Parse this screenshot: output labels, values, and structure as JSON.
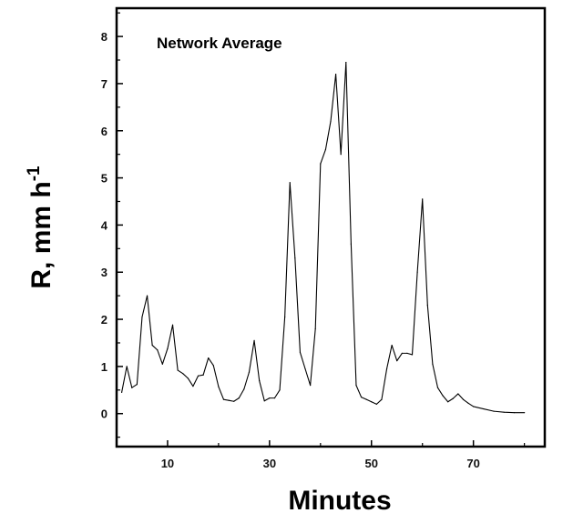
{
  "chart_data": {
    "type": "line",
    "annotation": "Network Average",
    "xlabel": "Minutes",
    "ylabel": "R, mm h",
    "ylabel_superscript": "-1",
    "xlim": [
      0,
      84
    ],
    "ylim": [
      -0.7,
      8.6
    ],
    "x_ticks": [
      10,
      30,
      50,
      70
    ],
    "y_ticks": [
      0,
      1,
      2,
      3,
      4,
      5,
      6,
      7,
      8
    ],
    "grid": false,
    "series": [
      {
        "x": [
          1,
          2,
          3,
          4,
          5,
          6,
          7,
          8,
          9,
          10,
          11,
          12,
          13,
          14,
          15,
          16,
          17,
          18,
          19,
          20,
          21,
          22,
          23,
          24,
          25,
          26,
          27,
          28,
          29,
          30,
          31,
          32,
          33,
          34,
          35,
          36,
          37,
          38,
          39,
          40,
          41,
          42,
          43,
          44,
          45,
          46,
          47,
          48,
          49,
          50,
          51,
          52,
          53,
          54,
          55,
          56,
          57,
          58,
          59,
          60,
          61,
          62,
          63,
          64,
          65,
          66,
          67,
          68,
          69,
          70,
          72,
          74,
          76,
          78,
          80
        ],
        "y": [
          0.45,
          1.0,
          0.55,
          0.62,
          2.05,
          2.5,
          1.45,
          1.35,
          1.05,
          1.38,
          1.88,
          0.92,
          0.85,
          0.75,
          0.58,
          0.8,
          0.82,
          1.18,
          1.02,
          0.57,
          0.3,
          0.28,
          0.26,
          0.33,
          0.52,
          0.88,
          1.55,
          0.7,
          0.27,
          0.33,
          0.33,
          0.5,
          2.05,
          4.9,
          3.3,
          1.3,
          0.95,
          0.6,
          1.8,
          5.3,
          5.6,
          6.2,
          7.2,
          5.5,
          7.45,
          3.6,
          0.6,
          0.35,
          0.3,
          0.25,
          0.2,
          0.3,
          0.95,
          1.45,
          1.12,
          1.28,
          1.28,
          1.25,
          3.0,
          4.55,
          2.3,
          1.05,
          0.55,
          0.38,
          0.25,
          0.32,
          0.42,
          0.3,
          0.22,
          0.15,
          0.1,
          0.05,
          0.03,
          0.02,
          0.02
        ]
      }
    ]
  }
}
